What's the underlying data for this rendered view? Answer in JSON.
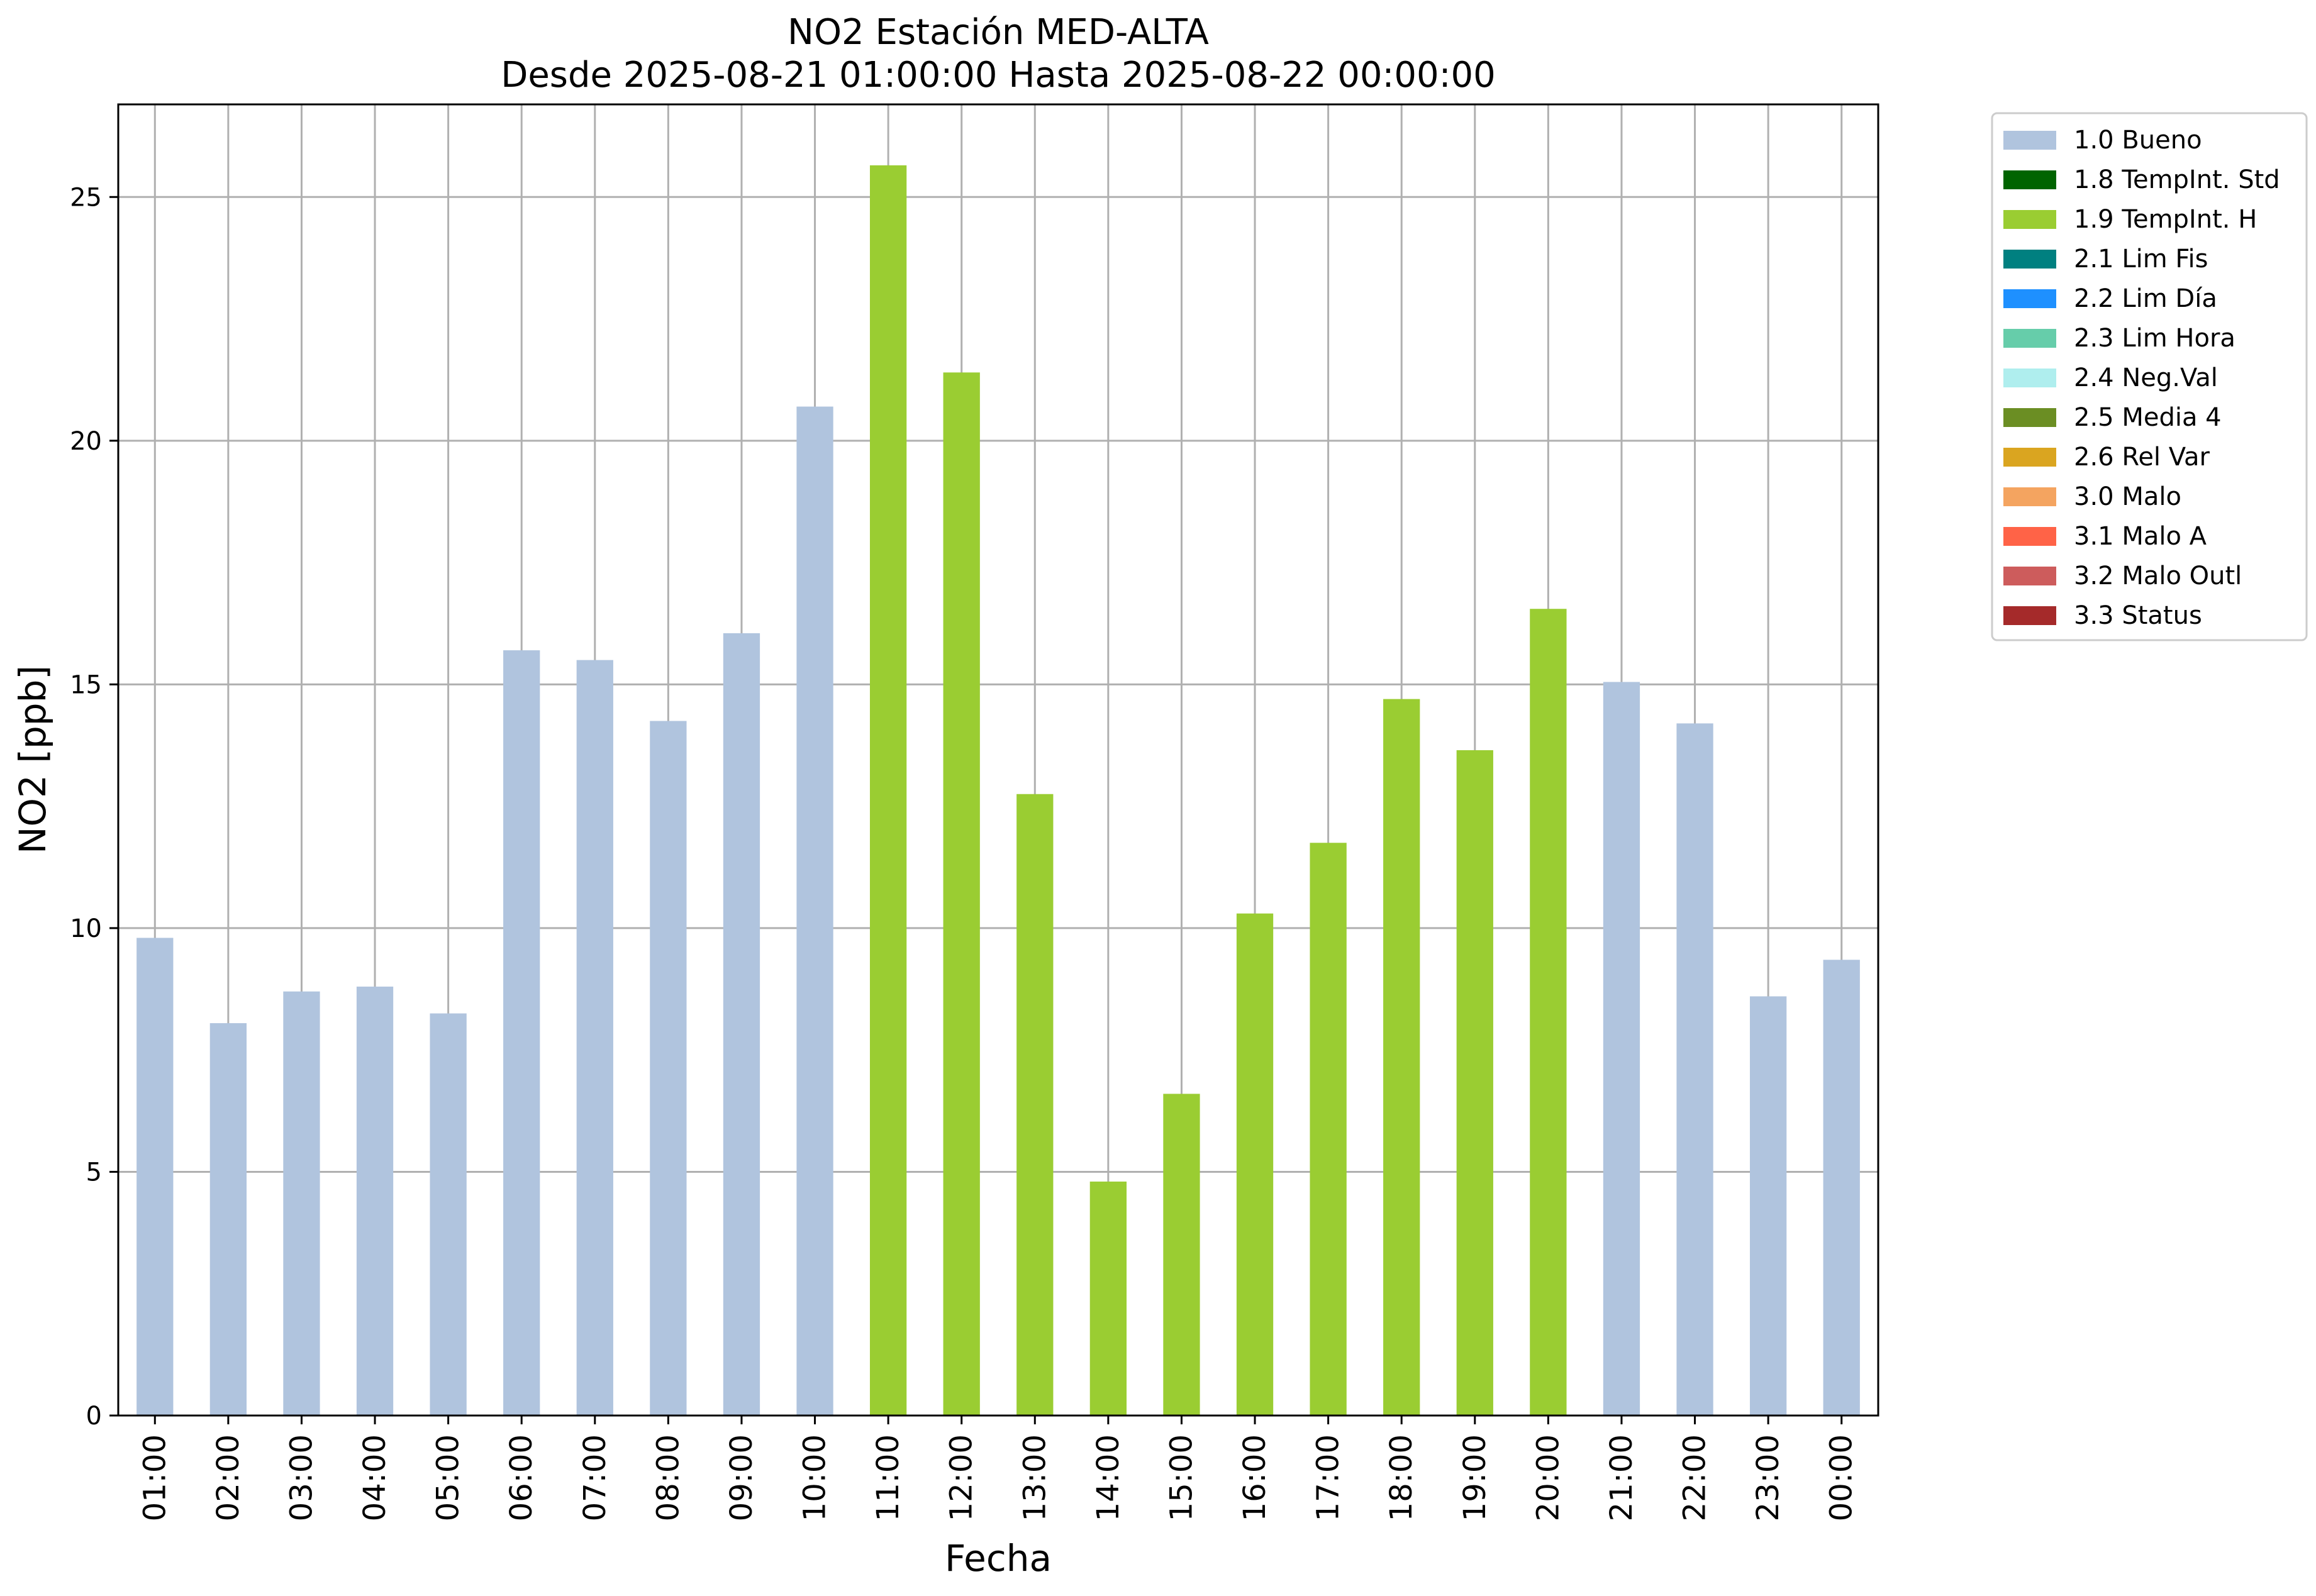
{
  "chart_data": {
    "type": "bar",
    "title": "NO2 Estación MED-ALTA",
    "subtitle": "Desde 2025-08-21 01:00:00 Hasta 2025-08-22 00:00:00",
    "xlabel": "Fecha",
    "ylabel": "NO2 [ppb]",
    "ylim": [
      0,
      26.9
    ],
    "yticks": [
      "0",
      "5",
      "10",
      "15",
      "20",
      "25"
    ],
    "grid": true,
    "legend_position": "outside-right-top",
    "categories": [
      "01:00",
      "02:00",
      "03:00",
      "04:00",
      "05:00",
      "06:00",
      "07:00",
      "08:00",
      "09:00",
      "10:00",
      "11:00",
      "12:00",
      "13:00",
      "14:00",
      "15:00",
      "16:00",
      "17:00",
      "18:00",
      "19:00",
      "20:00",
      "21:00",
      "22:00",
      "23:00",
      "00:00"
    ],
    "values": [
      9.8,
      8.05,
      8.7,
      8.8,
      8.25,
      15.7,
      15.5,
      14.25,
      16.05,
      20.7,
      25.65,
      21.4,
      12.75,
      4.8,
      6.6,
      10.3,
      11.75,
      14.7,
      13.65,
      16.55,
      15.05,
      14.2,
      8.6,
      9.35
    ],
    "flags": [
      "1.0 Bueno",
      "1.0 Bueno",
      "1.0 Bueno",
      "1.0 Bueno",
      "1.0 Bueno",
      "1.0 Bueno",
      "1.0 Bueno",
      "1.0 Bueno",
      "1.0 Bueno",
      "1.0 Bueno",
      "1.9 TempInt. H",
      "1.9 TempInt. H",
      "1.9 TempInt. H",
      "1.9 TempInt. H",
      "1.9 TempInt. H",
      "1.9 TempInt. H",
      "1.9 TempInt. H",
      "1.9 TempInt. H",
      "1.9 TempInt. H",
      "1.9 TempInt. H",
      "1.0 Bueno",
      "1.0 Bueno",
      "1.0 Bueno",
      "1.0 Bueno"
    ],
    "legend": [
      {
        "label": "1.0 Bueno",
        "color": "#b0c4de"
      },
      {
        "label": "1.8 TempInt. Std",
        "color": "#006400"
      },
      {
        "label": "1.9 TempInt. H",
        "color": "#9acd32"
      },
      {
        "label": "2.1 Lim Fis",
        "color": "#008080"
      },
      {
        "label": "2.2 Lim Día",
        "color": "#1e90ff"
      },
      {
        "label": "2.3 Lim Hora",
        "color": "#66cdaa"
      },
      {
        "label": "2.4 Neg.Val",
        "color": "#afeeee"
      },
      {
        "label": "2.5 Media 4",
        "color": "#6b8e23"
      },
      {
        "label": "2.6 Rel Var",
        "color": "#daa520"
      },
      {
        "label": "3.0 Malo",
        "color": "#f4a460"
      },
      {
        "label": "3.1 Malo A",
        "color": "#ff6347"
      },
      {
        "label": "3.2 Malo Outl",
        "color": "#cd5c5c"
      },
      {
        "label": "3.3 Status",
        "color": "#a52a2a"
      }
    ]
  }
}
